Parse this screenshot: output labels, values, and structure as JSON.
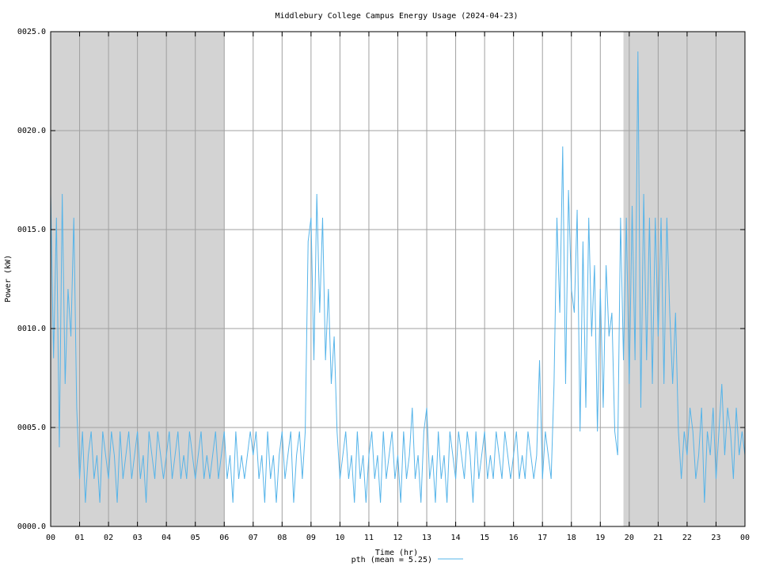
{
  "chart_data": {
    "type": "line",
    "title": "Middlebury College Campus Energy Usage (2024-04-23)",
    "xlabel": "Time (hr)",
    "ylabel": "Power (kW)",
    "xlim": [
      0,
      24
    ],
    "ylim": [
      0,
      25
    ],
    "xticks": [
      {
        "value": 0,
        "label": "00"
      },
      {
        "value": 1,
        "label": "01"
      },
      {
        "value": 2,
        "label": "02"
      },
      {
        "value": 3,
        "label": "03"
      },
      {
        "value": 4,
        "label": "04"
      },
      {
        "value": 5,
        "label": "05"
      },
      {
        "value": 6,
        "label": "06"
      },
      {
        "value": 7,
        "label": "07"
      },
      {
        "value": 8,
        "label": "08"
      },
      {
        "value": 9,
        "label": "09"
      },
      {
        "value": 10,
        "label": "10"
      },
      {
        "value": 11,
        "label": "11"
      },
      {
        "value": 12,
        "label": "12"
      },
      {
        "value": 13,
        "label": "13"
      },
      {
        "value": 14,
        "label": "14"
      },
      {
        "value": 15,
        "label": "15"
      },
      {
        "value": 16,
        "label": "16"
      },
      {
        "value": 17,
        "label": "17"
      },
      {
        "value": 18,
        "label": "18"
      },
      {
        "value": 19,
        "label": "19"
      },
      {
        "value": 20,
        "label": "20"
      },
      {
        "value": 21,
        "label": "21"
      },
      {
        "value": 22,
        "label": "22"
      },
      {
        "value": 23,
        "label": "23"
      },
      {
        "value": 24,
        "label": "00"
      }
    ],
    "yticks": [
      {
        "value": 0,
        "label": "0000.0"
      },
      {
        "value": 5,
        "label": "0005.0"
      },
      {
        "value": 10,
        "label": "0010.0"
      },
      {
        "value": 15,
        "label": "0015.0"
      },
      {
        "value": 20,
        "label": "0020.0"
      },
      {
        "value": 25,
        "label": "0025.0"
      }
    ],
    "grid": true,
    "shaded_spans": [
      [
        0,
        6
      ],
      [
        19.8,
        24
      ]
    ],
    "legend": "bottom",
    "series": [
      {
        "name": "pth (mean = 5.25)",
        "color": "#56b4e9",
        "x": [
          0.0,
          0.1,
          0.2,
          0.3,
          0.4,
          0.5,
          0.6,
          0.7,
          0.8,
          0.9,
          1.0,
          1.1,
          1.2,
          1.3,
          1.4,
          1.5,
          1.6,
          1.7,
          1.8,
          1.9,
          2.0,
          2.1,
          2.2,
          2.3,
          2.4,
          2.5,
          2.6,
          2.7,
          2.8,
          2.9,
          3.0,
          3.1,
          3.2,
          3.3,
          3.4,
          3.5,
          3.6,
          3.7,
          3.8,
          3.9,
          4.0,
          4.1,
          4.2,
          4.3,
          4.4,
          4.5,
          4.6,
          4.7,
          4.8,
          4.9,
          5.0,
          5.1,
          5.2,
          5.3,
          5.4,
          5.5,
          5.6,
          5.7,
          5.8,
          5.9,
          6.0,
          6.1,
          6.2,
          6.3,
          6.4,
          6.5,
          6.6,
          6.7,
          6.8,
          6.9,
          7.0,
          7.1,
          7.2,
          7.3,
          7.4,
          7.5,
          7.6,
          7.7,
          7.8,
          7.9,
          8.0,
          8.1,
          8.2,
          8.3,
          8.4,
          8.5,
          8.6,
          8.7,
          8.8,
          8.9,
          9.0,
          9.1,
          9.2,
          9.3,
          9.4,
          9.5,
          9.6,
          9.7,
          9.8,
          9.9,
          10.0,
          10.1,
          10.2,
          10.3,
          10.4,
          10.5,
          10.6,
          10.7,
          10.8,
          10.9,
          11.0,
          11.1,
          11.2,
          11.3,
          11.4,
          11.5,
          11.6,
          11.7,
          11.8,
          11.9,
          12.0,
          12.1,
          12.2,
          12.3,
          12.4,
          12.5,
          12.6,
          12.7,
          12.8,
          12.9,
          13.0,
          13.1,
          13.2,
          13.3,
          13.4,
          13.5,
          13.6,
          13.7,
          13.8,
          13.9,
          14.0,
          14.1,
          14.2,
          14.3,
          14.4,
          14.5,
          14.6,
          14.7,
          14.8,
          14.9,
          15.0,
          15.1,
          15.2,
          15.3,
          15.4,
          15.5,
          15.6,
          15.7,
          15.8,
          15.9,
          16.0,
          16.1,
          16.2,
          16.3,
          16.4,
          16.5,
          16.6,
          16.7,
          16.8,
          16.9,
          17.0,
          17.1,
          17.2,
          17.3,
          17.4,
          17.5,
          17.6,
          17.7,
          17.8,
          17.9,
          18.0,
          18.1,
          18.2,
          18.3,
          18.4,
          18.5,
          18.6,
          18.7,
          18.8,
          18.9,
          19.0,
          19.1,
          19.2,
          19.3,
          19.4,
          19.5,
          19.6,
          19.7,
          19.8,
          19.9,
          20.0,
          20.1,
          20.2,
          20.3,
          20.4,
          20.5,
          20.6,
          20.7,
          20.8,
          20.9,
          21.0,
          21.1,
          21.2,
          21.3,
          21.4,
          21.5,
          21.6,
          21.7,
          21.8,
          21.9,
          22.0,
          22.1,
          22.2,
          22.3,
          22.4,
          22.5,
          22.6,
          22.7,
          22.8,
          22.9,
          23.0,
          23.1,
          23.2,
          23.3,
          23.4,
          23.5,
          23.6,
          23.7,
          23.8,
          23.9,
          24.0
        ],
        "values": [
          16.8,
          8.5,
          15.6,
          4.0,
          16.8,
          7.2,
          12.0,
          9.6,
          15.6,
          6.0,
          2.4,
          4.8,
          1.2,
          3.6,
          4.8,
          2.4,
          3.6,
          1.2,
          4.8,
          3.6,
          2.4,
          4.8,
          3.6,
          1.2,
          4.8,
          2.4,
          3.6,
          4.8,
          2.4,
          3.6,
          4.8,
          2.4,
          3.6,
          1.2,
          4.8,
          3.6,
          2.4,
          4.8,
          3.6,
          2.4,
          3.6,
          4.8,
          2.4,
          3.6,
          4.8,
          2.4,
          3.6,
          2.4,
          4.8,
          3.6,
          2.4,
          3.6,
          4.8,
          2.4,
          3.6,
          2.4,
          3.6,
          4.8,
          2.4,
          3.6,
          4.8,
          2.4,
          3.6,
          1.2,
          4.8,
          2.4,
          3.6,
          2.4,
          3.6,
          4.8,
          3.6,
          4.8,
          2.4,
          3.6,
          1.2,
          4.8,
          2.4,
          3.6,
          1.2,
          3.6,
          4.8,
          2.4,
          3.6,
          4.8,
          1.2,
          3.6,
          4.8,
          2.4,
          4.8,
          14.4,
          15.6,
          8.4,
          16.8,
          10.8,
          15.6,
          8.4,
          12.0,
          7.2,
          9.6,
          4.8,
          2.4,
          3.6,
          4.8,
          2.4,
          3.6,
          1.2,
          4.8,
          2.4,
          3.6,
          1.2,
          3.6,
          4.8,
          2.4,
          3.6,
          1.2,
          4.8,
          2.4,
          3.6,
          4.8,
          2.4,
          3.6,
          1.2,
          4.8,
          2.4,
          3.6,
          6.0,
          2.4,
          3.6,
          1.2,
          4.8,
          6.0,
          2.4,
          3.6,
          1.2,
          4.8,
          2.4,
          3.6,
          1.2,
          4.8,
          3.6,
          2.4,
          4.8,
          3.6,
          2.4,
          4.8,
          3.6,
          1.2,
          4.8,
          2.4,
          3.6,
          4.8,
          2.4,
          3.6,
          2.4,
          4.8,
          3.6,
          2.4,
          4.8,
          3.6,
          2.4,
          3.6,
          4.8,
          2.4,
          3.6,
          2.4,
          4.8,
          3.6,
          2.4,
          3.6,
          8.4,
          2.4,
          4.8,
          3.6,
          2.4,
          7.2,
          15.6,
          10.8,
          19.2,
          7.2,
          17.0,
          12.0,
          10.8,
          16.0,
          4.8,
          14.4,
          6.0,
          15.6,
          9.6,
          13.2,
          4.8,
          12.0,
          6.0,
          13.2,
          9.6,
          10.8,
          4.8,
          3.6,
          15.6,
          8.4,
          15.6,
          7.2,
          16.2,
          8.4,
          24.0,
          6.0,
          16.8,
          8.4,
          15.6,
          7.2,
          15.6,
          9.6,
          15.6,
          7.2,
          15.6,
          10.8,
          7.2,
          10.8,
          4.8,
          2.4,
          4.8,
          3.6,
          6.0,
          4.8,
          2.4,
          3.6,
          6.0,
          1.2,
          4.8,
          3.6,
          6.0,
          2.4,
          4.8,
          7.2,
          3.6,
          6.0,
          4.8,
          2.4,
          6.0,
          3.6,
          4.8,
          3.6
        ]
      }
    ]
  }
}
